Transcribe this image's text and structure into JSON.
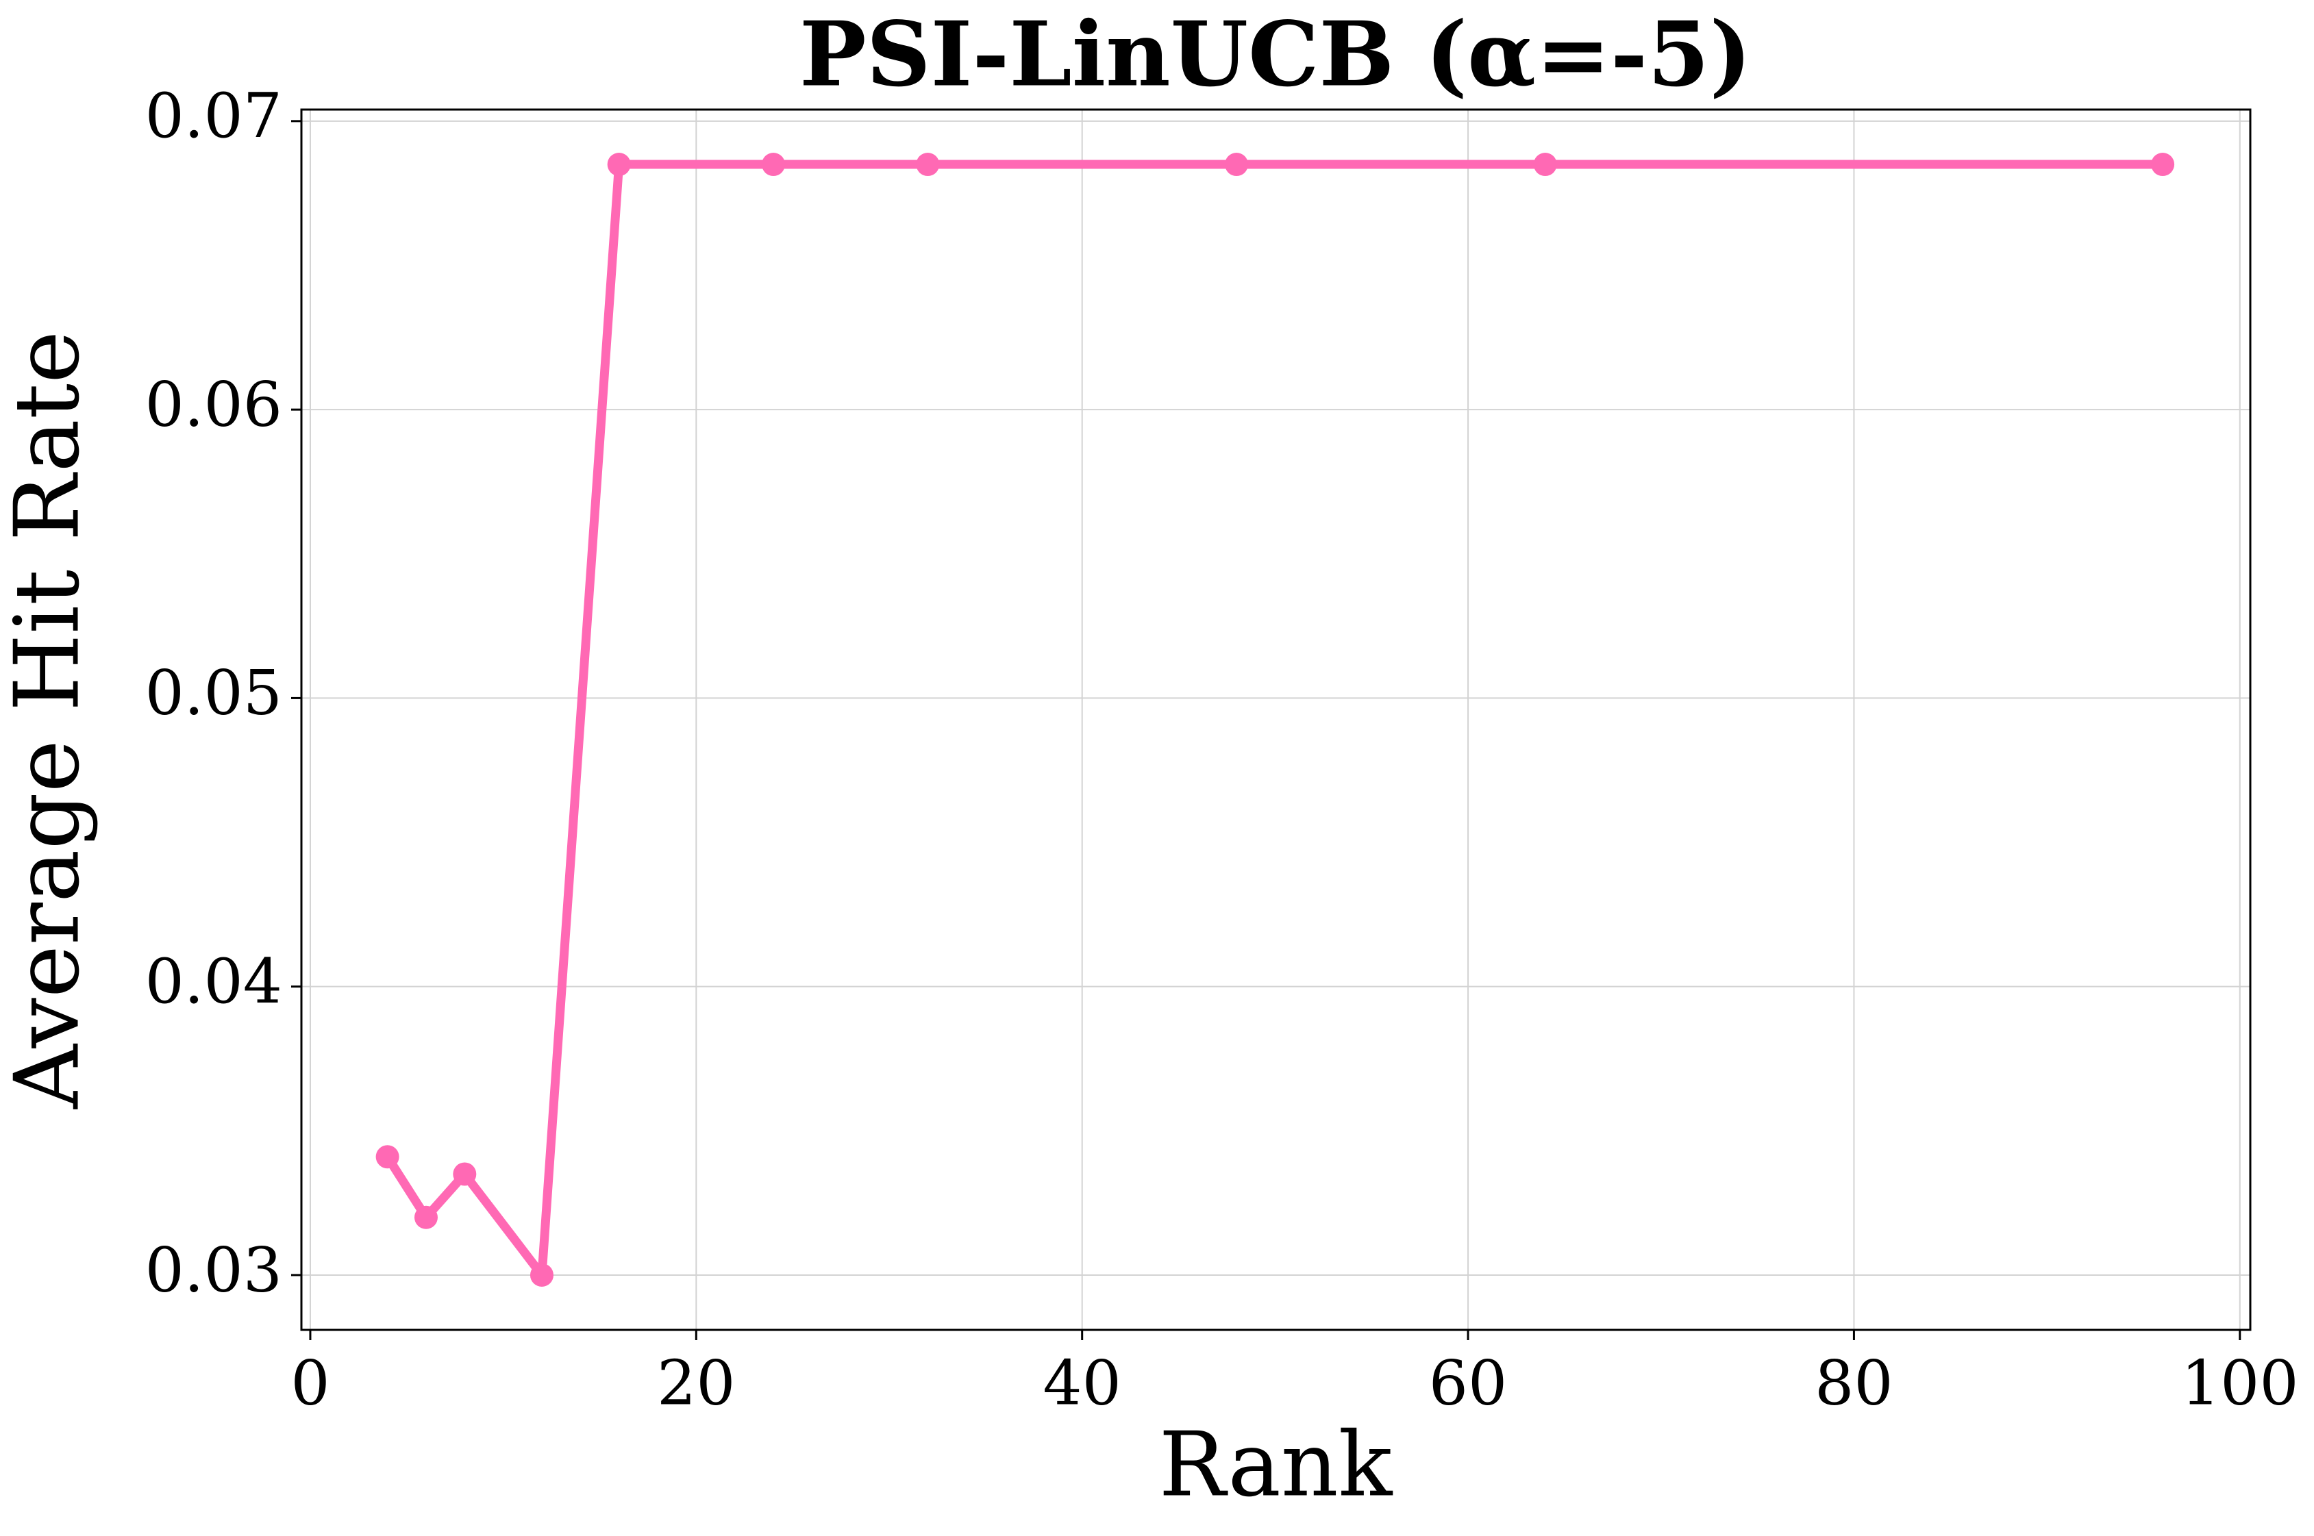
{
  "chart_data": {
    "type": "line",
    "title": "PSI-LinUCB (α=-5)",
    "x_label": "Rank",
    "y_label": "Average Hit Rate",
    "x": [
      4,
      6,
      8,
      12,
      16,
      24,
      32,
      48,
      64,
      96
    ],
    "series": [
      {
        "color": "#ff69b4",
        "values": [
          0.0341,
          0.032,
          0.0335,
          0.03,
          0.0685,
          0.0685,
          0.0685,
          0.0685,
          0.0685,
          0.0685
        ]
      }
    ],
    "xlim": [
      -0.46,
      100.54
    ],
    "xticks": [
      0,
      20,
      40,
      60,
      80,
      100
    ],
    "ylim": [
      0.0281,
      0.0704
    ],
    "yticks": [
      0.03,
      0.04,
      0.05,
      0.06,
      0.07
    ],
    "grid": true
  }
}
